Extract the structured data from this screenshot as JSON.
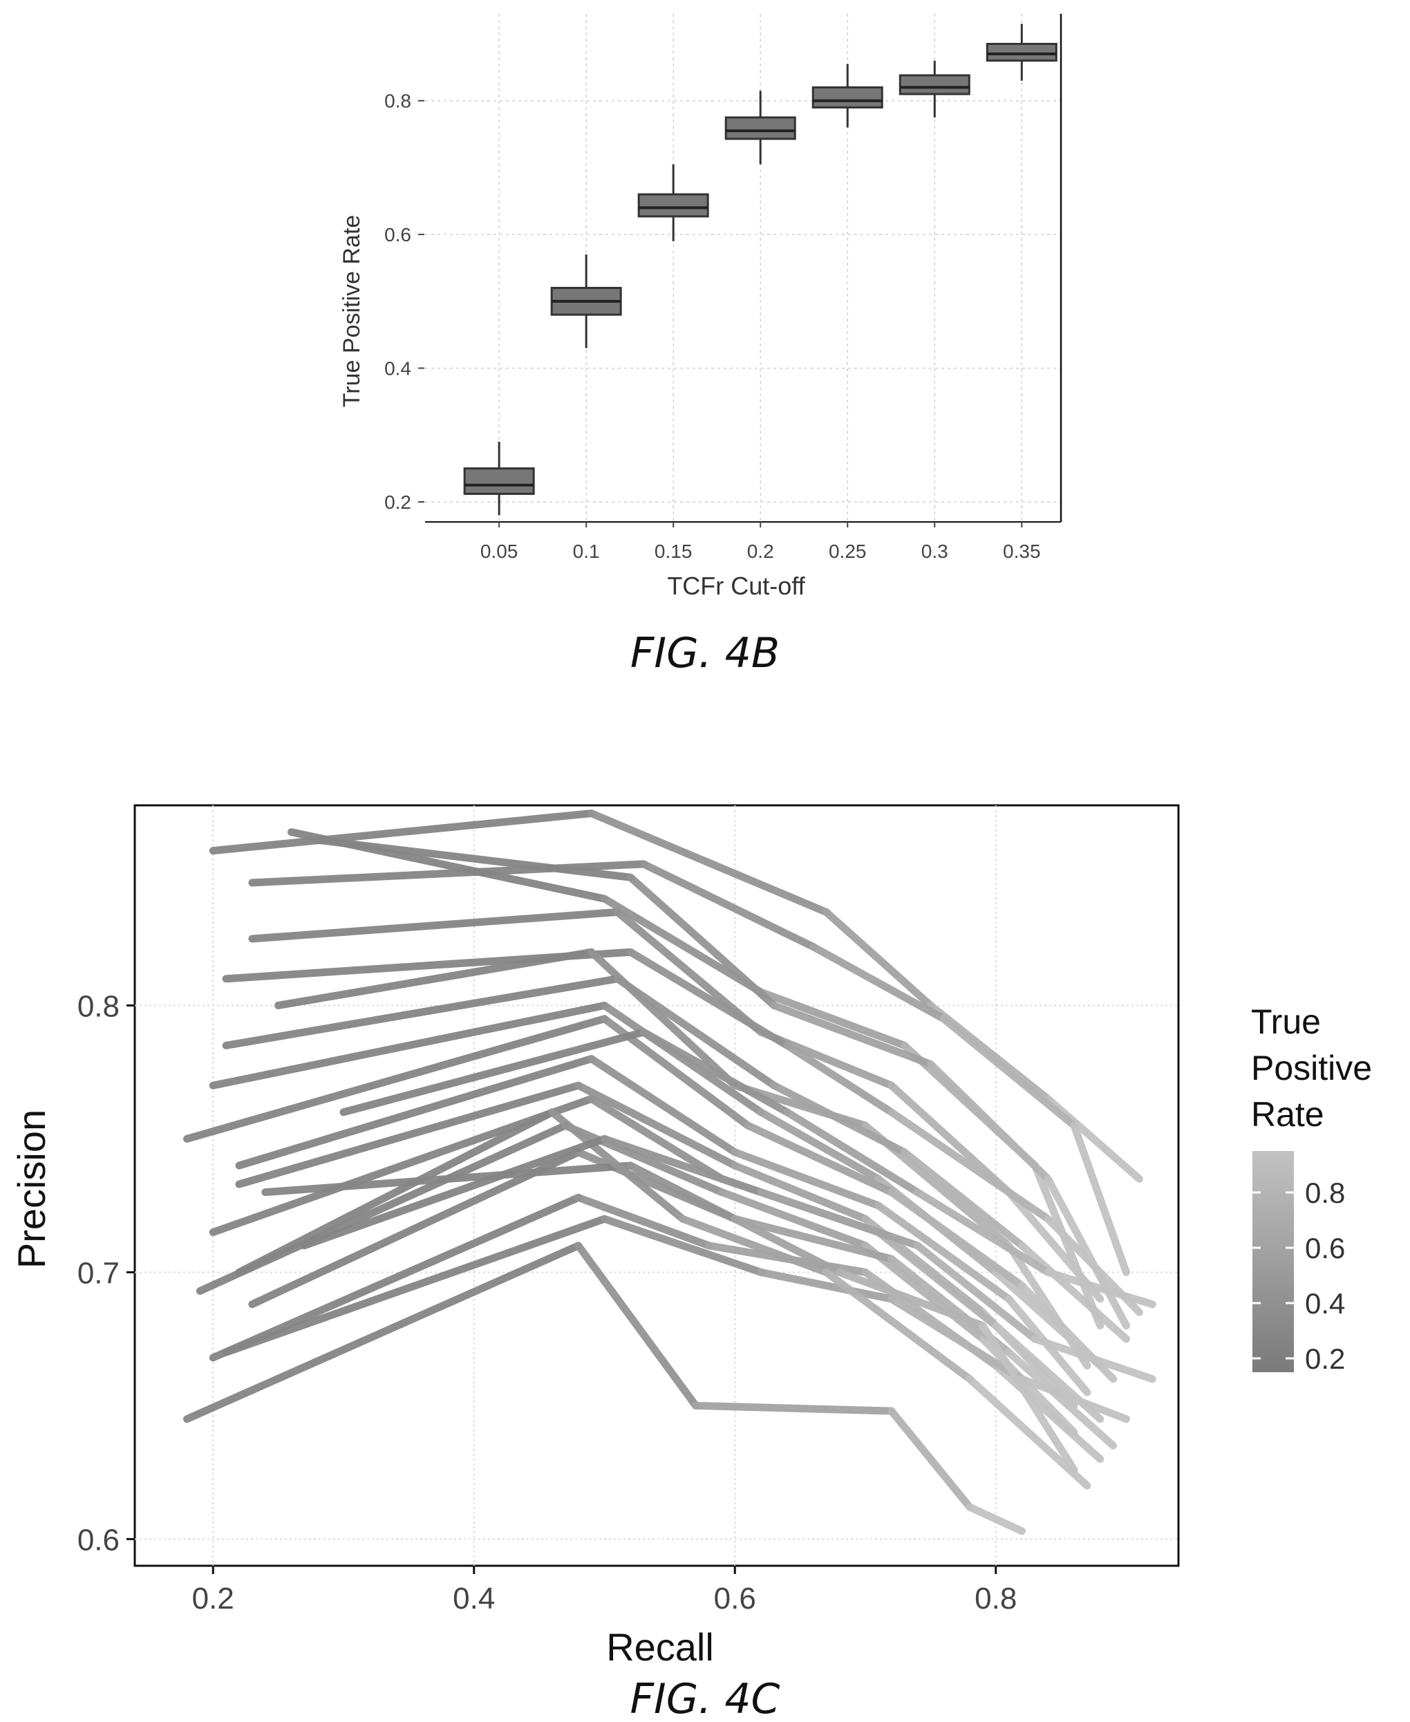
{
  "fig4b": {
    "caption": "FIG. 4B",
    "chart_data": {
      "type": "box",
      "xlabel": "TCFr Cut-off",
      "ylabel": "True Positive Rate",
      "categories": [
        "0.05",
        "0.1",
        "0.15",
        "0.2",
        "0.25",
        "0.3",
        "0.35"
      ],
      "ylim": [
        0.17,
        0.93
      ],
      "yticks": [
        0.2,
        0.4,
        0.6,
        0.8
      ],
      "ytick_labels": [
        "0.2",
        "0.4",
        "0.6",
        "0.8"
      ],
      "boxes": [
        {
          "x": "0.05",
          "whisker_low": 0.18,
          "q1": 0.212,
          "median": 0.225,
          "q3": 0.25,
          "whisker_high": 0.29
        },
        {
          "x": "0.1",
          "whisker_low": 0.43,
          "q1": 0.48,
          "median": 0.5,
          "q3": 0.52,
          "whisker_high": 0.57
        },
        {
          "x": "0.15",
          "whisker_low": 0.59,
          "q1": 0.627,
          "median": 0.64,
          "q3": 0.66,
          "whisker_high": 0.705
        },
        {
          "x": "0.2",
          "whisker_low": 0.705,
          "q1": 0.743,
          "median": 0.755,
          "q3": 0.775,
          "whisker_high": 0.815
        },
        {
          "x": "0.25",
          "whisker_low": 0.76,
          "q1": 0.79,
          "median": 0.8,
          "q3": 0.82,
          "whisker_high": 0.855
        },
        {
          "x": "0.3",
          "whisker_low": 0.775,
          "q1": 0.81,
          "median": 0.82,
          "q3": 0.838,
          "whisker_high": 0.86
        },
        {
          "x": "0.35",
          "whisker_low": 0.83,
          "q1": 0.86,
          "median": 0.87,
          "q3": 0.885,
          "whisker_high": 0.915
        }
      ],
      "grid": true,
      "box_color": "#777777"
    }
  },
  "fig4c": {
    "caption": "FIG. 4C",
    "chart_data": {
      "type": "line",
      "xlabel": "Recall",
      "ylabel": "Precision",
      "xlim": [
        0.14,
        0.94
      ],
      "ylim": [
        0.59,
        0.875
      ],
      "xticks": [
        0.2,
        0.4,
        0.6,
        0.8
      ],
      "xtick_labels": [
        "0.2",
        "0.4",
        "0.6",
        "0.8"
      ],
      "yticks": [
        0.6,
        0.7,
        0.8
      ],
      "ytick_labels": [
        "0.6",
        "0.7",
        "0.8"
      ],
      "grid": true,
      "color_scale": {
        "title_lines": [
          "True",
          "Positive",
          "Rate"
        ],
        "low_color": "#7a7a7a",
        "high_color": "#c2c2c2",
        "range": [
          0.15,
          0.95
        ],
        "ticks": [
          0.2,
          0.4,
          0.6,
          0.8
        ],
        "tick_labels": [
          "0.2",
          "0.4",
          "0.6",
          "0.8"
        ],
        "position": "right"
      },
      "series": [
        {
          "x": [
            0.2,
            0.49,
            0.67,
            0.75,
            0.84,
            0.91
          ],
          "y": [
            0.858,
            0.872,
            0.835,
            0.8,
            0.765,
            0.735
          ]
        },
        {
          "x": [
            0.23,
            0.53,
            0.66,
            0.76,
            0.86,
            0.9
          ],
          "y": [
            0.846,
            0.853,
            0.822,
            0.795,
            0.755,
            0.7
          ]
        },
        {
          "x": [
            0.26,
            0.5,
            0.62,
            0.73,
            0.83,
            0.88
          ],
          "y": [
            0.865,
            0.84,
            0.805,
            0.785,
            0.74,
            0.68
          ]
        },
        {
          "x": [
            0.28,
            0.52,
            0.63,
            0.75,
            0.84,
            0.9
          ],
          "y": [
            0.862,
            0.848,
            0.8,
            0.778,
            0.735,
            0.68
          ]
        },
        {
          "x": [
            0.23,
            0.51,
            0.62,
            0.72,
            0.81,
            0.88
          ],
          "y": [
            0.825,
            0.835,
            0.79,
            0.77,
            0.73,
            0.69
          ]
        },
        {
          "x": [
            0.21,
            0.52,
            0.64,
            0.72,
            0.84,
            0.91
          ],
          "y": [
            0.81,
            0.82,
            0.785,
            0.76,
            0.72,
            0.685
          ]
        },
        {
          "x": [
            0.25,
            0.49,
            0.6,
            0.7,
            0.81,
            0.87
          ],
          "y": [
            0.8,
            0.82,
            0.77,
            0.755,
            0.71,
            0.665
          ]
        },
        {
          "x": [
            0.21,
            0.51,
            0.63,
            0.73,
            0.82,
            0.9
          ],
          "y": [
            0.785,
            0.81,
            0.77,
            0.745,
            0.71,
            0.675
          ]
        },
        {
          "x": [
            0.2,
            0.5,
            0.62,
            0.71,
            0.8,
            0.88
          ],
          "y": [
            0.77,
            0.8,
            0.76,
            0.735,
            0.7,
            0.665
          ]
        },
        {
          "x": [
            0.18,
            0.5,
            0.61,
            0.72,
            0.82,
            0.89
          ],
          "y": [
            0.75,
            0.795,
            0.755,
            0.73,
            0.695,
            0.66
          ]
        },
        {
          "x": [
            0.22,
            0.49,
            0.6,
            0.71,
            0.81,
            0.87
          ],
          "y": [
            0.74,
            0.78,
            0.745,
            0.725,
            0.69,
            0.655
          ]
        },
        {
          "x": [
            0.22,
            0.48,
            0.6,
            0.7,
            0.79,
            0.86
          ],
          "y": [
            0.733,
            0.77,
            0.74,
            0.72,
            0.685,
            0.65
          ]
        },
        {
          "x": [
            0.2,
            0.49,
            0.59,
            0.71,
            0.8,
            0.88
          ],
          "y": [
            0.715,
            0.765,
            0.735,
            0.715,
            0.68,
            0.645
          ]
        },
        {
          "x": [
            0.19,
            0.47,
            0.59,
            0.7,
            0.79,
            0.86
          ],
          "y": [
            0.693,
            0.755,
            0.73,
            0.71,
            0.675,
            0.64
          ]
        },
        {
          "x": [
            0.23,
            0.48,
            0.6,
            0.72,
            0.81,
            0.89
          ],
          "y": [
            0.688,
            0.745,
            0.72,
            0.705,
            0.67,
            0.635
          ]
        },
        {
          "x": [
            0.2,
            0.48,
            0.58,
            0.7,
            0.8,
            0.88
          ],
          "y": [
            0.668,
            0.728,
            0.71,
            0.7,
            0.665,
            0.63
          ]
        },
        {
          "x": [
            0.21,
            0.5,
            0.62,
            0.72,
            0.82,
            0.9
          ],
          "y": [
            0.67,
            0.72,
            0.7,
            0.69,
            0.66,
            0.645
          ]
        },
        {
          "x": [
            0.18,
            0.48,
            0.57,
            0.72,
            0.78,
            0.82
          ],
          "y": [
            0.645,
            0.71,
            0.65,
            0.648,
            0.612,
            0.603
          ]
        },
        {
          "x": [
            0.24,
            0.52,
            0.6,
            0.68,
            0.79,
            0.86
          ],
          "y": [
            0.73,
            0.74,
            0.72,
            0.7,
            0.68,
            0.626
          ]
        },
        {
          "x": [
            0.3,
            0.53,
            0.64,
            0.74,
            0.84,
            0.92
          ],
          "y": [
            0.76,
            0.79,
            0.76,
            0.73,
            0.7,
            0.688
          ]
        },
        {
          "x": [
            0.22,
            0.46,
            0.56,
            0.67,
            0.78,
            0.87
          ],
          "y": [
            0.7,
            0.76,
            0.72,
            0.7,
            0.66,
            0.62
          ]
        },
        {
          "x": [
            0.27,
            0.5,
            0.62,
            0.74,
            0.83,
            0.92
          ],
          "y": [
            0.71,
            0.75,
            0.73,
            0.71,
            0.675,
            0.66
          ]
        }
      ]
    }
  }
}
